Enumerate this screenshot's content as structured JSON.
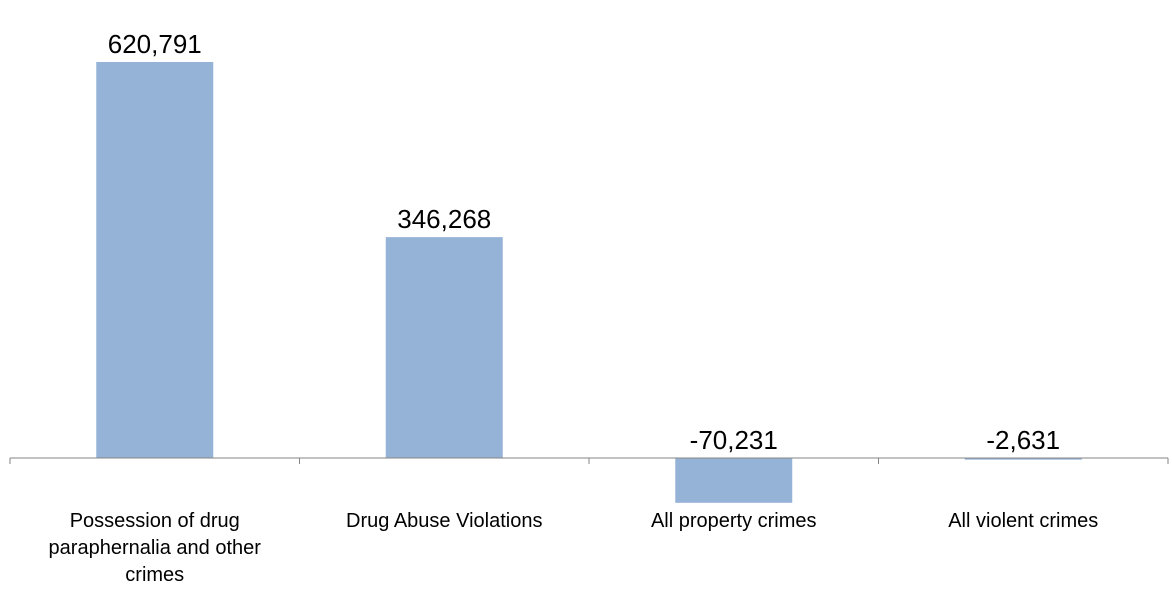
{
  "chart_data": {
    "type": "bar",
    "categories": [
      "Possession of drug paraphernalia and other crimes",
      "Drug Abuse Violations",
      "All property crimes",
      "All violent crimes"
    ],
    "category_label_lines": [
      [
        "Possession of drug",
        "paraphernalia and other",
        "crimes"
      ],
      [
        "Drug Abuse Violations"
      ],
      [
        "All property crimes"
      ],
      [
        "All violent crimes"
      ]
    ],
    "values": [
      620791,
      346268,
      -70231,
      -2631
    ],
    "data_labels": [
      "620,791",
      "346,268",
      "-70,231",
      "-2,631"
    ],
    "title": "",
    "xlabel": "",
    "ylabel": "",
    "grid": false,
    "legend": "none",
    "bar_color": "#95b3d7",
    "axis_color": "#868686"
  }
}
